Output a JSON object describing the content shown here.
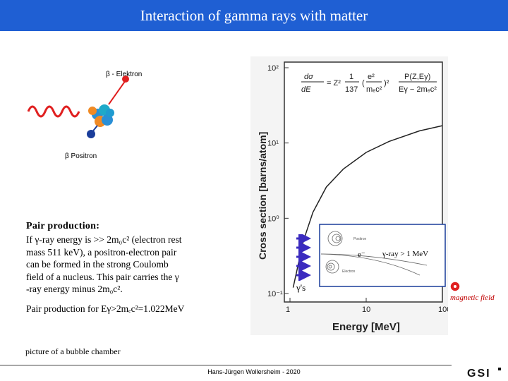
{
  "header": {
    "title": "Interaction of gamma rays with matter"
  },
  "diagram": {
    "beta_minus_label": "β - Elektron",
    "beta_plus_label": "β  Positron"
  },
  "text_block": {
    "heading": "Pair production:",
    "body_line1": "If γ-ray energy is >> 2m₀c² (electron rest",
    "body_line2": "mass 511 keV), a positron-electron pair",
    "body_line3": "can be formed in the strong Coulomb",
    "body_line4": "field of a nucleus. This pair carries the  γ",
    "body_line5": "-ray energy minus 2m₀c².",
    "pair_line": "Pair production for Eγ>2mₑc²=1.022MeV"
  },
  "figure": {
    "ylabel": "Cross section [barns/atom]",
    "xlabel": "Energy [MeV]",
    "y_ticks": [
      "10²",
      "10¹",
      "10⁰",
      "10⁻¹"
    ],
    "x_ticks": [
      "1",
      "10",
      "100"
    ],
    "inset_positron": "Positron",
    "inset_electron": "Electron",
    "e_minus": "e⁻",
    "gamma_ray_label": "γ-ray > 1 MeV",
    "gammas_label": "γ's",
    "magnetic_label": "magnetic field"
  },
  "caption": "picture of a bubble chamber",
  "footer": "Hans-Jürgen Wollersheim - 2020",
  "logo_text": "GSI",
  "colors": {
    "header": "#1f5fd3",
    "arrow": "#3b2bbf",
    "red": "#c00000"
  },
  "chart_data": {
    "type": "line",
    "title": "",
    "xlabel": "Energy [MeV]",
    "ylabel": "Cross section [barns/atom]",
    "xscale": "log",
    "yscale": "log",
    "xlim": [
      1,
      100
    ],
    "ylim": [
      0.1,
      100
    ],
    "series": [
      {
        "x": [
          1.1,
          1.5,
          2,
          3,
          5,
          10,
          20,
          50,
          100
        ],
        "values": [
          0.12,
          0.5,
          1.2,
          2.6,
          4.5,
          7.5,
          10.5,
          14.5,
          17
        ]
      }
    ]
  }
}
